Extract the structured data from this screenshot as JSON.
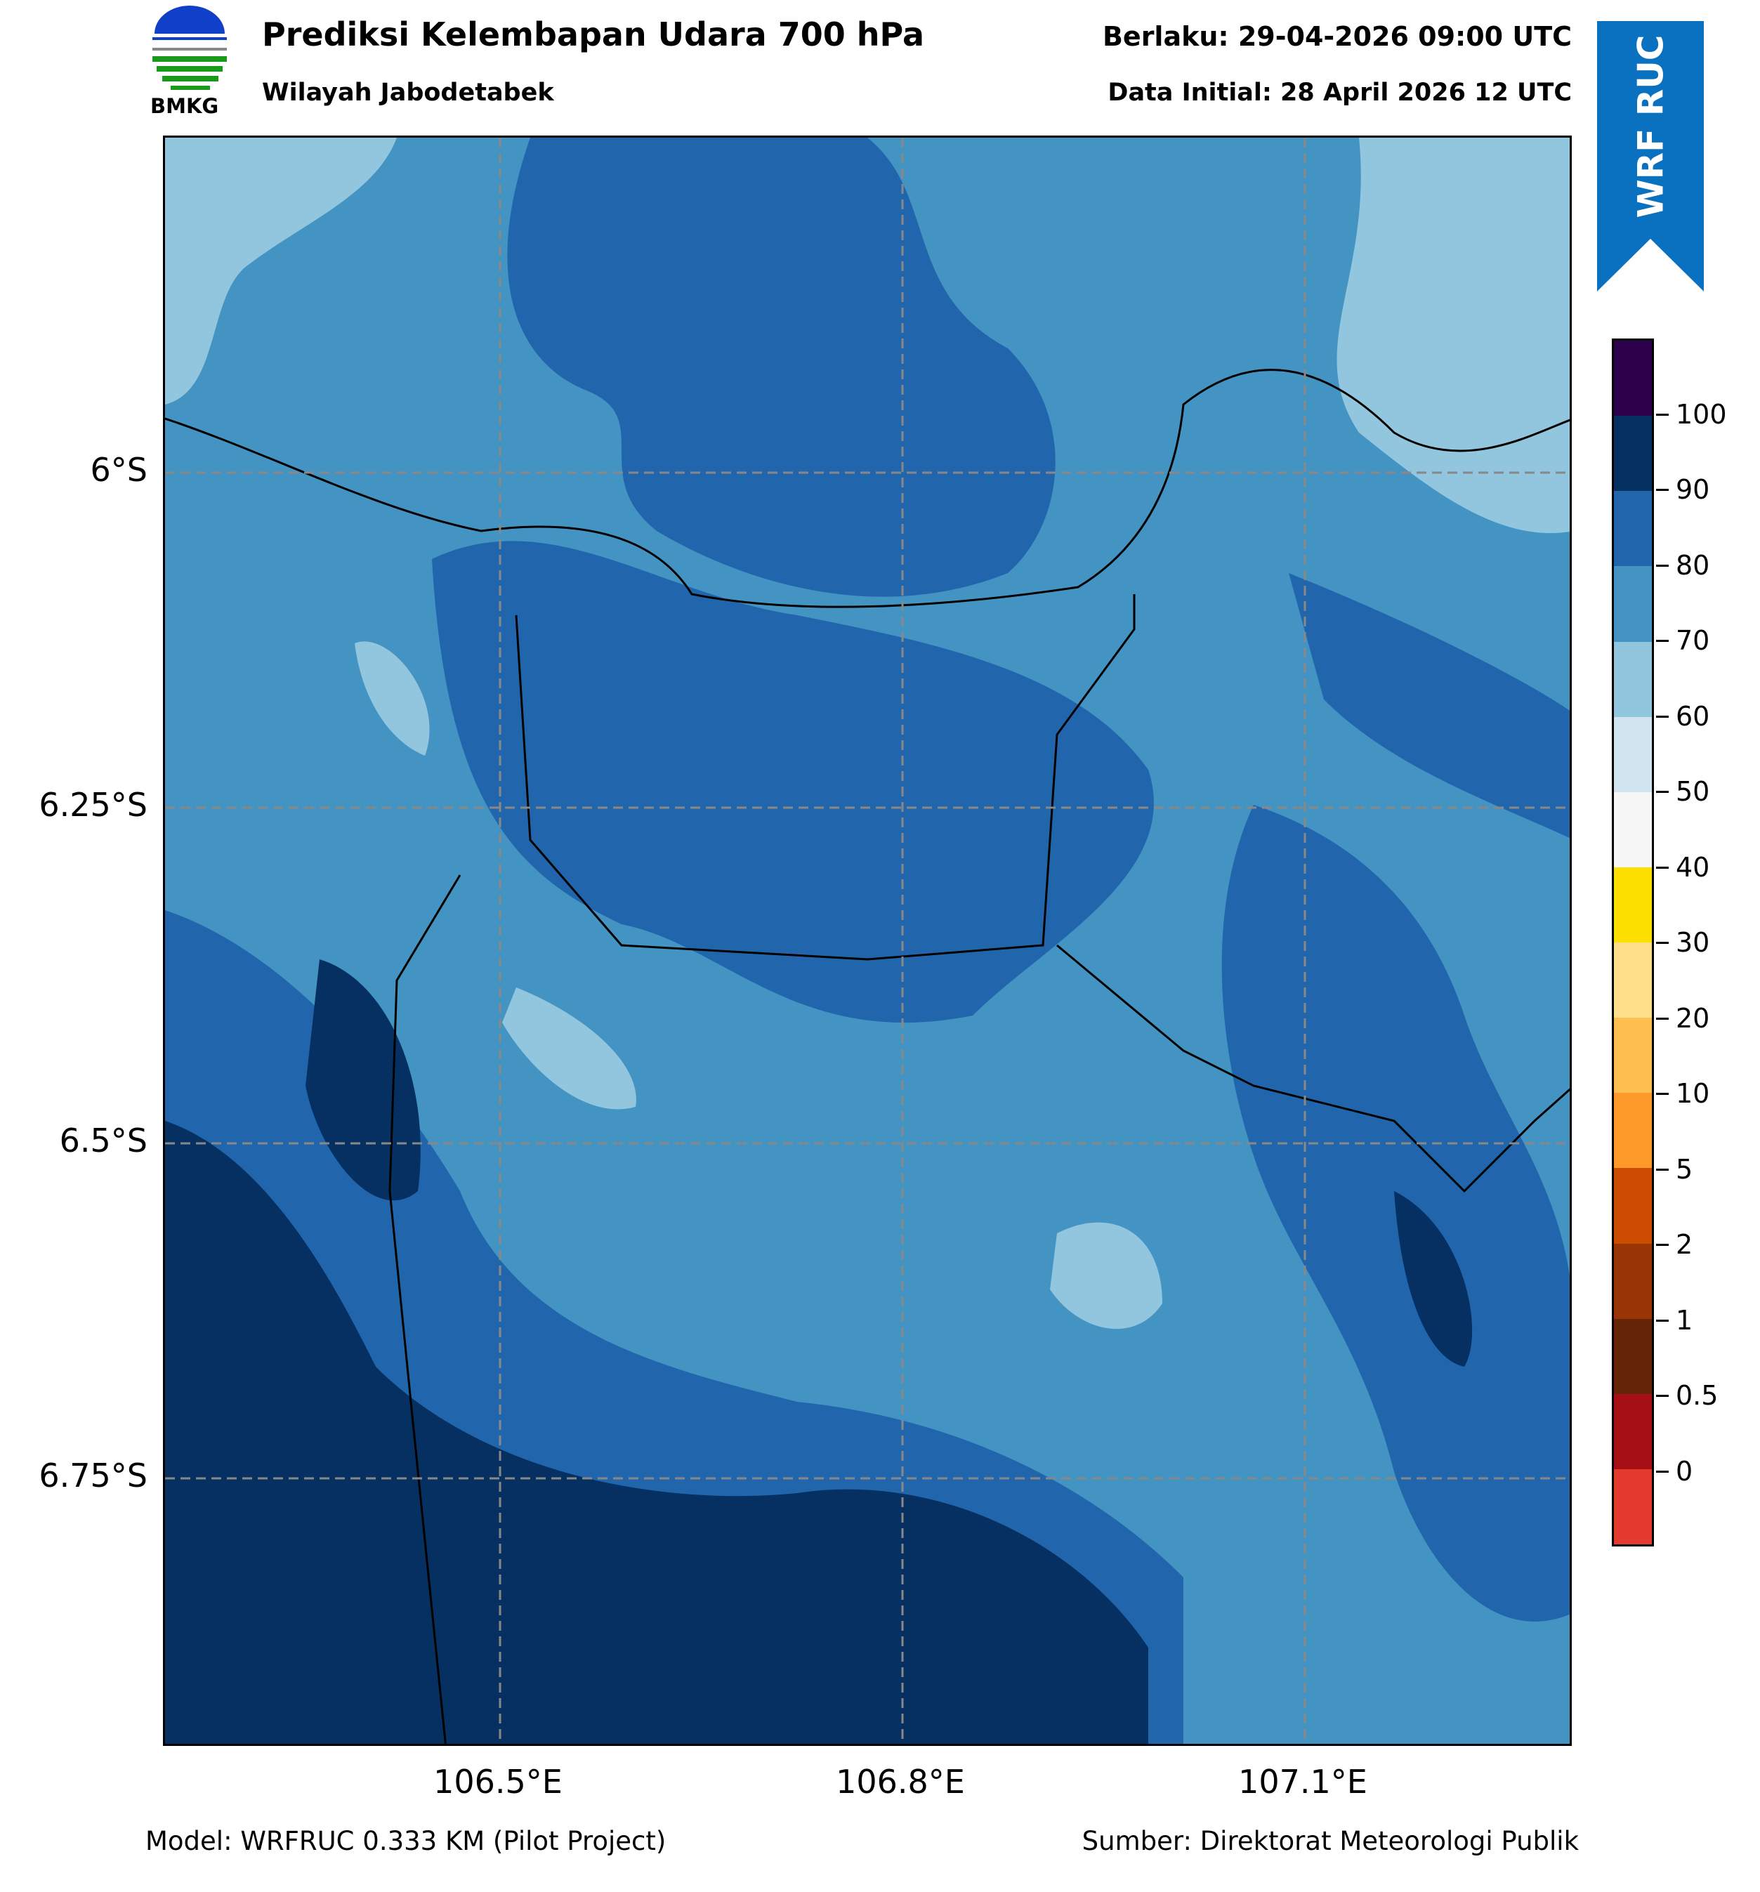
{
  "header": {
    "title": "Prediksi Kelembapan Udara 700 hPa",
    "subtitle": "Wilayah Jabodetabek",
    "valid_time": "Berlaku: 29-04-2026 09:00 UTC",
    "initial_data": "Data Initial: 28 April 2026 12 UTC",
    "logo_text": "BMKG",
    "ribbon_text": "WRF RUC",
    "ribbon_color": "#0a70c0"
  },
  "map": {
    "lat_labels": [
      "6°S",
      "6.25°S",
      "6.5°S",
      "6.75°S"
    ],
    "lon_labels": [
      "106.5°E",
      "106.8°E",
      "107.1°E"
    ],
    "field_colors": {
      "c60_70": "#92c5de",
      "c70_80": "#4393c3",
      "c80_90": "#2166ac",
      "c90_100": "#053061",
      "c50_60": "#d1e5f0"
    }
  },
  "colorbar": {
    "ticks": [
      "100",
      "90",
      "80",
      "70",
      "60",
      "50",
      "40",
      "30",
      "20",
      "10",
      "5",
      "2",
      "1",
      "0.5",
      "0"
    ],
    "colors": [
      "#2d004b",
      "#053061",
      "#2166ac",
      "#4393c3",
      "#92c5de",
      "#d1e5f0",
      "#f7f7f7",
      "#fde000",
      "#fee08b",
      "#fdc050",
      "#fd9a2a",
      "#cc4c02",
      "#993404",
      "#662506",
      "#a50f15",
      "#e33b2e"
    ]
  },
  "footer": {
    "model": "Model: WRFRUC 0.333 KM (Pilot Project)",
    "source": "Sumber: Direktorat Meteorologi Publik"
  }
}
